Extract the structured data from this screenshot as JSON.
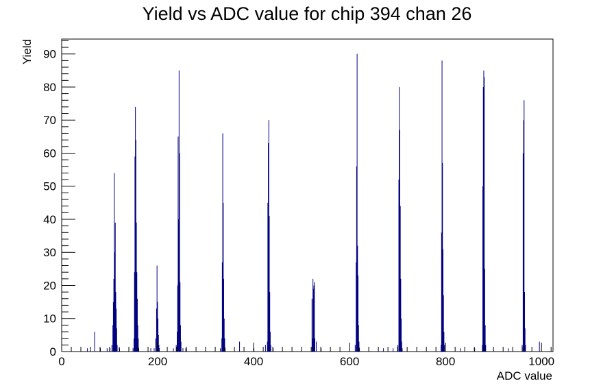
{
  "chart_data": {
    "type": "bar",
    "title": "Yield vs ADC value for chip 394 chan 26",
    "xlabel": "ADC value",
    "ylabel": "Yield",
    "xlim": [
      0,
      1024
    ],
    "ylim": [
      0,
      94.5
    ],
    "xticks": [
      "0",
      "200",
      "400",
      "600",
      "800",
      "1000"
    ],
    "yticks": [
      "0",
      "10",
      "20",
      "30",
      "40",
      "50",
      "60",
      "70",
      "80",
      "90"
    ],
    "grid": false,
    "legend": "none",
    "color": "#000080",
    "bins": [
      {
        "x": 53,
        "y": 1
      },
      {
        "x": 68,
        "y": 6
      },
      {
        "x": 80,
        "y": 1
      },
      {
        "x": 94,
        "y": 1
      },
      {
        "x": 100,
        "y": 1
      },
      {
        "x": 104,
        "y": 2
      },
      {
        "x": 106,
        "y": 8
      },
      {
        "x": 107,
        "y": 15
      },
      {
        "x": 108,
        "y": 22
      },
      {
        "x": 109,
        "y": 54
      },
      {
        "x": 110,
        "y": 30
      },
      {
        "x": 111,
        "y": 39
      },
      {
        "x": 112,
        "y": 18
      },
      {
        "x": 113,
        "y": 13
      },
      {
        "x": 114,
        "y": 7
      },
      {
        "x": 115,
        "y": 2
      },
      {
        "x": 120,
        "y": 1
      },
      {
        "x": 148,
        "y": 1
      },
      {
        "x": 150,
        "y": 4
      },
      {
        "x": 151,
        "y": 24
      },
      {
        "x": 152,
        "y": 59
      },
      {
        "x": 153,
        "y": 74
      },
      {
        "x": 154,
        "y": 64
      },
      {
        "x": 155,
        "y": 39
      },
      {
        "x": 156,
        "y": 24
      },
      {
        "x": 157,
        "y": 16
      },
      {
        "x": 158,
        "y": 8
      },
      {
        "x": 159,
        "y": 4
      },
      {
        "x": 160,
        "y": 1
      },
      {
        "x": 185,
        "y": 1
      },
      {
        "x": 192,
        "y": 1
      },
      {
        "x": 195,
        "y": 4
      },
      {
        "x": 197,
        "y": 13
      },
      {
        "x": 198,
        "y": 26
      },
      {
        "x": 199,
        "y": 15
      },
      {
        "x": 200,
        "y": 10
      },
      {
        "x": 201,
        "y": 5
      },
      {
        "x": 202,
        "y": 2
      },
      {
        "x": 203,
        "y": 1
      },
      {
        "x": 232,
        "y": 1
      },
      {
        "x": 238,
        "y": 2
      },
      {
        "x": 240,
        "y": 6
      },
      {
        "x": 241,
        "y": 20
      },
      {
        "x": 242,
        "y": 65
      },
      {
        "x": 243,
        "y": 40
      },
      {
        "x": 244,
        "y": 85
      },
      {
        "x": 245,
        "y": 60
      },
      {
        "x": 246,
        "y": 21
      },
      {
        "x": 247,
        "y": 8
      },
      {
        "x": 248,
        "y": 3
      },
      {
        "x": 252,
        "y": 1
      },
      {
        "x": 258,
        "y": 1
      },
      {
        "x": 330,
        "y": 1
      },
      {
        "x": 333,
        "y": 4
      },
      {
        "x": 334,
        "y": 27
      },
      {
        "x": 335,
        "y": 66
      },
      {
        "x": 336,
        "y": 45
      },
      {
        "x": 337,
        "y": 22
      },
      {
        "x": 338,
        "y": 10
      },
      {
        "x": 339,
        "y": 4
      },
      {
        "x": 340,
        "y": 1
      },
      {
        "x": 370,
        "y": 3
      },
      {
        "x": 400,
        "y": 1
      },
      {
        "x": 424,
        "y": 2
      },
      {
        "x": 428,
        "y": 3
      },
      {
        "x": 429,
        "y": 45
      },
      {
        "x": 430,
        "y": 63
      },
      {
        "x": 431,
        "y": 70
      },
      {
        "x": 432,
        "y": 41
      },
      {
        "x": 433,
        "y": 18
      },
      {
        "x": 434,
        "y": 6
      },
      {
        "x": 435,
        "y": 2
      },
      {
        "x": 440,
        "y": 1
      },
      {
        "x": 521,
        "y": 16
      },
      {
        "x": 522,
        "y": 4
      },
      {
        "x": 523,
        "y": 22
      },
      {
        "x": 524,
        "y": 19
      },
      {
        "x": 525,
        "y": 20
      },
      {
        "x": 526,
        "y": 21
      },
      {
        "x": 527,
        "y": 4
      },
      {
        "x": 530,
        "y": 3
      },
      {
        "x": 540,
        "y": 1
      },
      {
        "x": 611,
        "y": 2
      },
      {
        "x": 613,
        "y": 27
      },
      {
        "x": 614,
        "y": 56
      },
      {
        "x": 615,
        "y": 90
      },
      {
        "x": 616,
        "y": 32
      },
      {
        "x": 617,
        "y": 23
      },
      {
        "x": 618,
        "y": 8
      },
      {
        "x": 619,
        "y": 3
      },
      {
        "x": 620,
        "y": 1
      },
      {
        "x": 670,
        "y": 1
      },
      {
        "x": 690,
        "y": 1
      },
      {
        "x": 700,
        "y": 2
      },
      {
        "x": 702,
        "y": 52
      },
      {
        "x": 703,
        "y": 80
      },
      {
        "x": 704,
        "y": 67
      },
      {
        "x": 705,
        "y": 44
      },
      {
        "x": 706,
        "y": 22
      },
      {
        "x": 707,
        "y": 10
      },
      {
        "x": 708,
        "y": 3
      },
      {
        "x": 709,
        "y": 1
      },
      {
        "x": 790,
        "y": 2
      },
      {
        "x": 791,
        "y": 36
      },
      {
        "x": 792,
        "y": 88
      },
      {
        "x": 793,
        "y": 57
      },
      {
        "x": 794,
        "y": 31
      },
      {
        "x": 795,
        "y": 17
      },
      {
        "x": 796,
        "y": 6
      },
      {
        "x": 797,
        "y": 2
      },
      {
        "x": 830,
        "y": 1
      },
      {
        "x": 860,
        "y": 1
      },
      {
        "x": 876,
        "y": 2
      },
      {
        "x": 877,
        "y": 50
      },
      {
        "x": 878,
        "y": 80
      },
      {
        "x": 879,
        "y": 85
      },
      {
        "x": 880,
        "y": 83
      },
      {
        "x": 881,
        "y": 25
      },
      {
        "x": 882,
        "y": 8
      },
      {
        "x": 883,
        "y": 2
      },
      {
        "x": 930,
        "y": 1
      },
      {
        "x": 959,
        "y": 2
      },
      {
        "x": 961,
        "y": 60
      },
      {
        "x": 962,
        "y": 70
      },
      {
        "x": 963,
        "y": 76
      },
      {
        "x": 964,
        "y": 18
      },
      {
        "x": 965,
        "y": 7
      },
      {
        "x": 966,
        "y": 2
      },
      {
        "x": 995,
        "y": 3
      }
    ]
  }
}
